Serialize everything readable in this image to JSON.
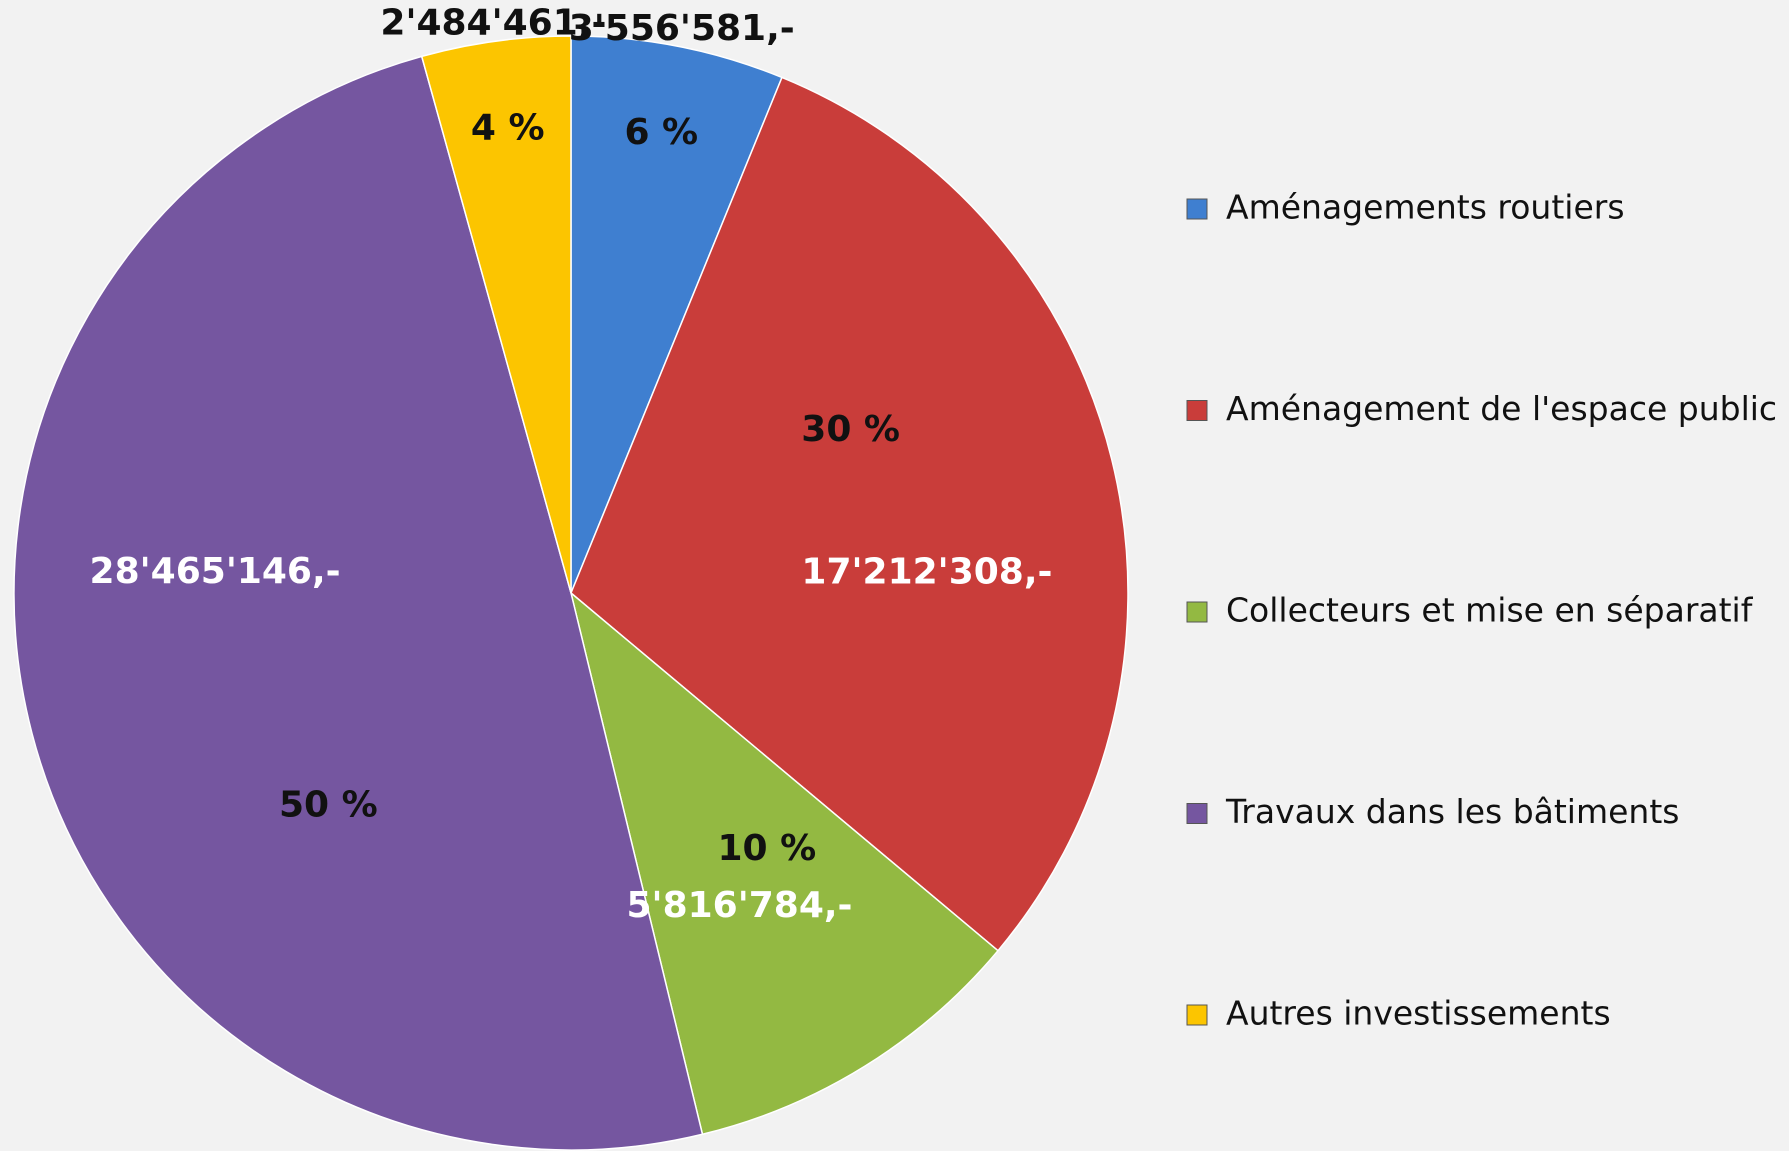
{
  "chart_data": {
    "type": "pie",
    "categories": [
      "Aménagements routiers",
      "Aménagement de l'espace public",
      "Collecteurs et mise en séparatif",
      "Travaux dans les bâtiments",
      "Autres investissements"
    ],
    "values": [
      3556581,
      17212308,
      5816784,
      28465146,
      2484461
    ],
    "value_labels": [
      "3'556'581,-",
      "17'212'308,-",
      "5'816'784,-",
      "28'465'146,-",
      "2'484'461,-"
    ],
    "percent_labels": [
      "6 %",
      "30 %",
      "10 %",
      "50 %",
      "4 %"
    ],
    "colors": [
      "#3f7fd0",
      "#c93d3a",
      "#93b942",
      "#7556a0",
      "#fcc500"
    ],
    "legend": "right"
  }
}
